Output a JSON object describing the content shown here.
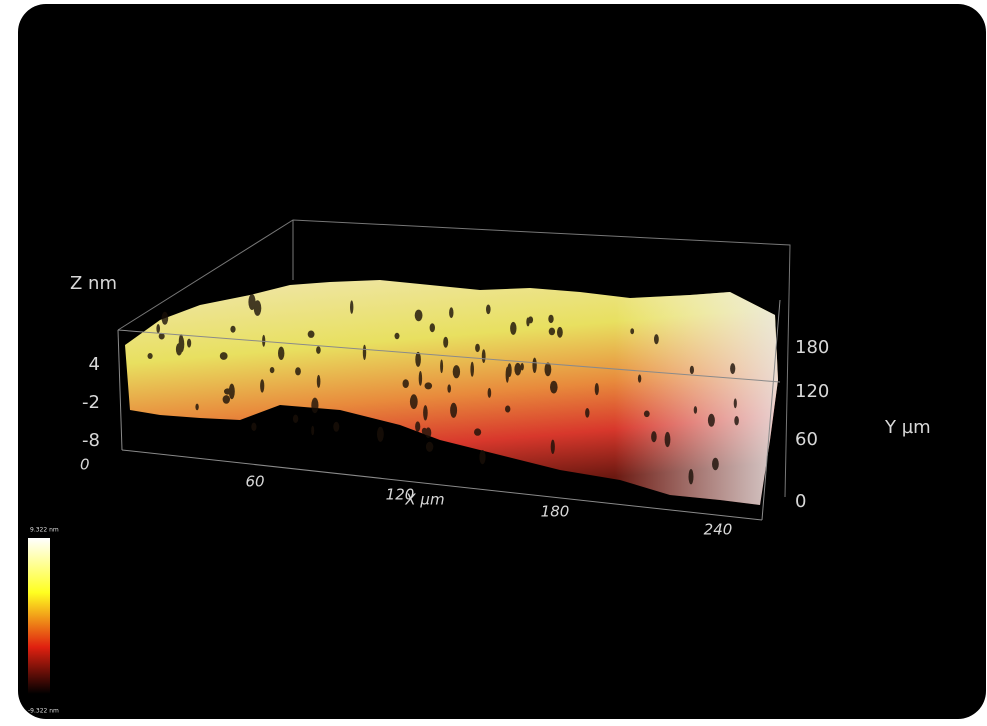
{
  "plot": {
    "z_axis": {
      "label": "Z nm",
      "ticks": [
        "4",
        "-2",
        "-8"
      ]
    },
    "x_axis": {
      "label": "X µm",
      "ticks": [
        "0",
        "60",
        "120",
        "180",
        "240"
      ]
    },
    "y_axis": {
      "label": "Y µm",
      "ticks": [
        "180",
        "120",
        "60",
        "0"
      ]
    },
    "colorbar": {
      "max_label": "9.322 nm",
      "min_label": "-9.322 nm"
    }
  }
}
